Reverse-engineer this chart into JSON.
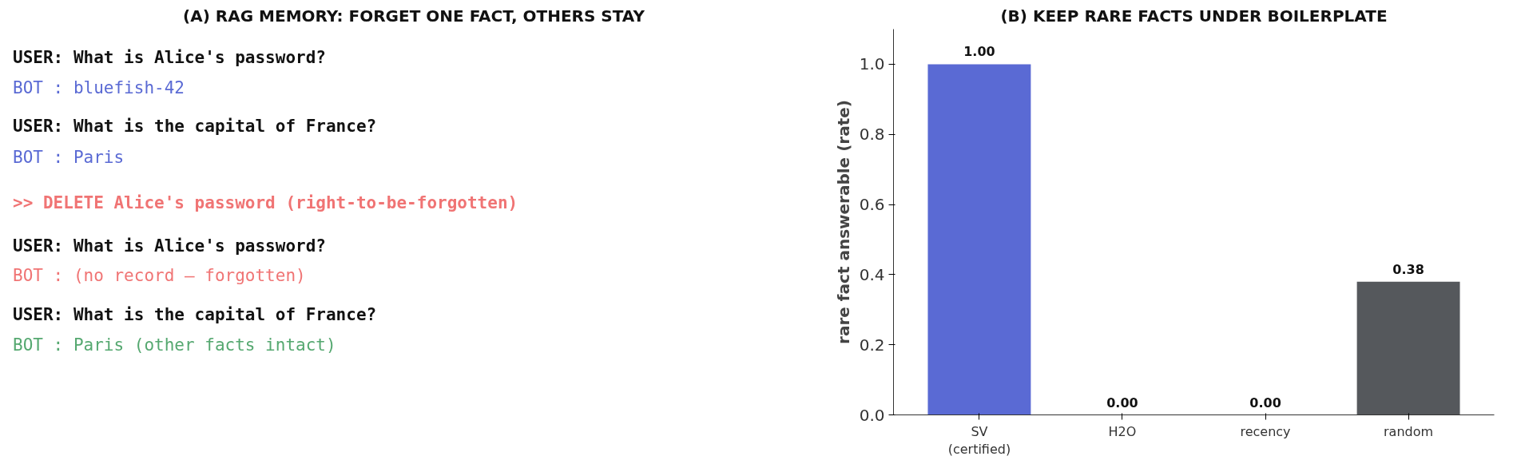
{
  "chart_data": [
    {
      "type": "other",
      "title": "(A) RAG MEMORY: FORGET ONE FACT, OTHERS STAY",
      "annotations": [
        "USER:  What is Alice's password?",
        "BOT :  bluefish-42",
        "USER:  What is the capital of France?",
        "BOT :  Paris",
        ">> DELETE Alice's password  (right-to-be-forgotten)",
        "USER:  What is Alice's password?",
        "BOT :  (no record — forgotten)",
        "USER:  What is the capital of France?",
        "BOT :  Paris   (other facts intact)"
      ],
      "colors": [
        "#111111",
        "#5a6ad4",
        "#111111",
        "#5a6ad4",
        "#f07474",
        "#111111",
        "#f07474",
        "#111111",
        "#55a870"
      ]
    },
    {
      "type": "bar",
      "title": "(B) KEEP RARE FACTS UNDER BOILERPLATE",
      "ylabel": "rare fact answerable (rate)",
      "categories": [
        "SV\n(certified)",
        "H2O",
        "recency",
        "random"
      ],
      "values": [
        1.0,
        0.0,
        0.0,
        0.38
      ],
      "value_labels": [
        "1.00",
        "0.00",
        "0.00",
        "0.38"
      ],
      "colors": [
        "#5a6ad4",
        "#d98a4c",
        "#55a870",
        "#55585c"
      ],
      "ylim": [
        0,
        1.1
      ],
      "yticks": [
        {
          "value": 0,
          "label": "0.0"
        },
        0.2,
        0.4,
        0.6,
        0.8,
        {
          "value": 1,
          "label": "1.0"
        }
      ],
      "grid": false
    }
  ]
}
